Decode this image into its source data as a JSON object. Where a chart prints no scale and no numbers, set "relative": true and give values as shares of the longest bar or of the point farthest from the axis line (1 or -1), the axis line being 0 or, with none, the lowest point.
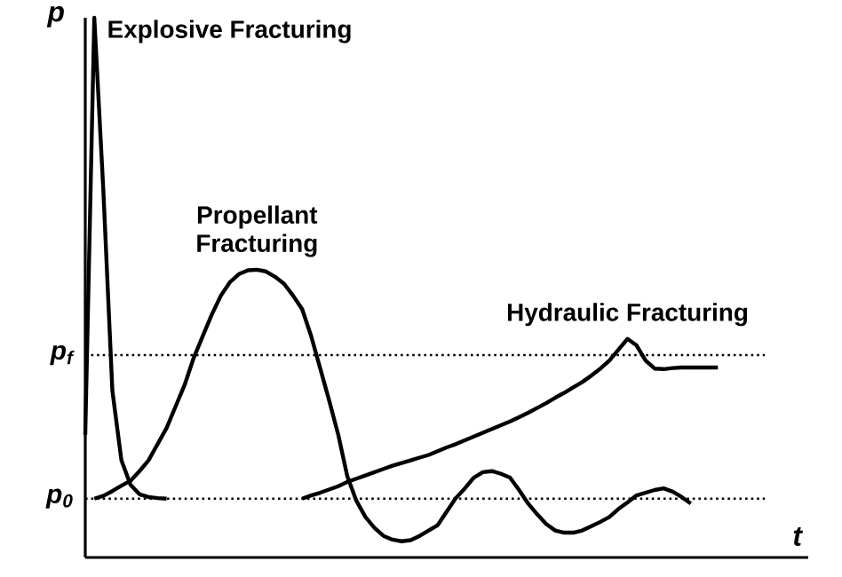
{
  "chart_data": {
    "type": "line",
    "relative": true,
    "xlabel": "t",
    "ylabel": "p",
    "categories": [
      null,
      null,
      null,
      null,
      null,
      null,
      null,
      null,
      null,
      null,
      null,
      null,
      null,
      null,
      null,
      null,
      null,
      null,
      null,
      null,
      null,
      null,
      null,
      null,
      null,
      null,
      null,
      null,
      null,
      null,
      null,
      null,
      null,
      null,
      null,
      null,
      null,
      null,
      null,
      null,
      null,
      null,
      null,
      null,
      null,
      null,
      null,
      null,
      null,
      null,
      null,
      null,
      null,
      null,
      null,
      null,
      null,
      null,
      null,
      null,
      null,
      null,
      null,
      null,
      null,
      null,
      null,
      null,
      null,
      null,
      null,
      null,
      null,
      null,
      null,
      null,
      null,
      null,
      null,
      null,
      null
    ],
    "series": [
      {
        "name": "Explosive Fracturing",
        "color": "#000000",
        "values": [
          0.227,
          1.0,
          0.68,
          0.309,
          0.18,
          0.135,
          0.117,
          0.112,
          0.11,
          0.109,
          null,
          null,
          null,
          null,
          null,
          null,
          null,
          null,
          null,
          null,
          null,
          null,
          null,
          null,
          null,
          null,
          null,
          null,
          null,
          null,
          null,
          null,
          null,
          null,
          null,
          null,
          null,
          null,
          null,
          null,
          null,
          null,
          null,
          null,
          null,
          null,
          null,
          null,
          null,
          null,
          null,
          null,
          null,
          null,
          null,
          null,
          null,
          null,
          null,
          null,
          null,
          null,
          null,
          null,
          null,
          null,
          null,
          null,
          null,
          null,
          null,
          null,
          null,
          null,
          null,
          null,
          null,
          null,
          null,
          null,
          null
        ]
      },
      {
        "name": "Propellant Fracturing",
        "color": "#000000",
        "values": [
          null,
          0.109,
          0.114,
          0.123,
          0.133,
          0.142,
          0.16,
          0.18,
          0.21,
          0.24,
          0.28,
          0.32,
          0.37,
          0.41,
          0.45,
          0.485,
          0.51,
          0.525,
          0.532,
          0.533,
          0.53,
          0.52,
          0.507,
          0.485,
          0.46,
          0.41,
          0.35,
          0.29,
          0.227,
          0.15,
          0.105,
          0.075,
          0.055,
          0.04,
          0.033,
          0.03,
          0.032,
          0.04,
          0.05,
          0.06,
          0.085,
          0.11,
          0.128,
          0.148,
          0.158,
          0.16,
          0.155,
          0.148,
          0.125,
          0.1,
          0.08,
          0.062,
          0.05,
          0.046,
          0.046,
          0.05,
          0.058,
          0.066,
          0.075,
          0.09,
          0.102,
          0.115,
          0.12,
          0.125,
          0.128,
          0.122,
          0.112,
          0.1,
          null,
          null,
          null,
          null,
          null,
          null,
          null,
          null,
          null,
          null,
          null,
          null,
          null
        ]
      },
      {
        "name": "Hydraulic Fracturing",
        "color": "#000000",
        "values": [
          null,
          null,
          null,
          null,
          null,
          null,
          null,
          null,
          null,
          null,
          null,
          null,
          null,
          null,
          null,
          null,
          null,
          null,
          null,
          null,
          null,
          null,
          null,
          null,
          0.109,
          0.115,
          0.12,
          0.126,
          0.132,
          0.14,
          0.146,
          0.152,
          0.158,
          0.164,
          0.17,
          0.175,
          0.18,
          0.185,
          0.19,
          0.197,
          0.204,
          0.21,
          0.217,
          0.224,
          0.231,
          0.238,
          0.245,
          0.252,
          0.26,
          0.268,
          0.277,
          0.286,
          0.296,
          0.305,
          0.315,
          0.325,
          0.337,
          0.35,
          0.365,
          0.385,
          0.405,
          0.393,
          0.365,
          0.35,
          0.349,
          0.351,
          0.352,
          0.352,
          0.352,
          0.352,
          0.352,
          null,
          null,
          null,
          null,
          null,
          null,
          null,
          null,
          null,
          null
        ]
      }
    ],
    "ref_lines": [
      {
        "axis": "y",
        "value": 0.375,
        "label": "p$_{f}$",
        "line_style": "dotted"
      },
      {
        "axis": "y",
        "value": 0.109,
        "label": "p$_{0}$",
        "line_style": "dotted"
      }
    ]
  }
}
